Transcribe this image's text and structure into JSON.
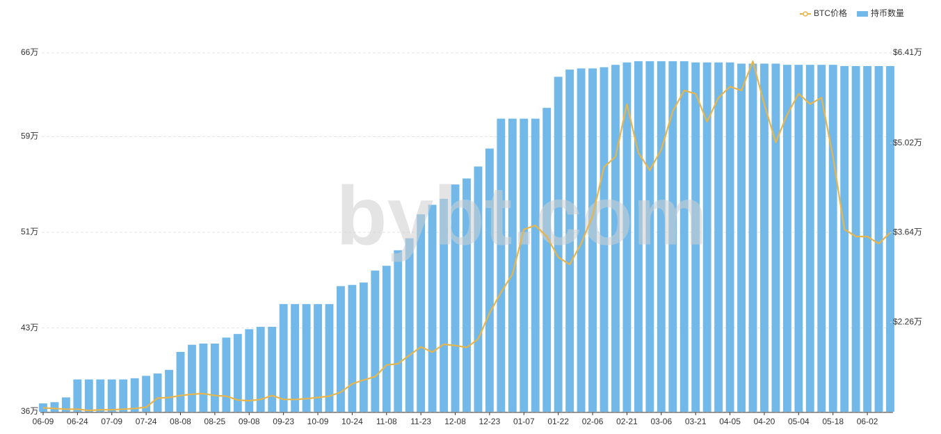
{
  "chart_data": {
    "type": "combo",
    "watermark": "bybt.com",
    "legend": "top-right",
    "grid": true,
    "categories": [
      "06-09",
      null,
      null,
      "06-24",
      null,
      null,
      "07-09",
      null,
      null,
      "07-24",
      null,
      null,
      "08-08",
      null,
      null,
      "08-25",
      null,
      null,
      "09-08",
      null,
      null,
      "09-23",
      null,
      null,
      "10-09",
      null,
      null,
      "10-24",
      null,
      null,
      "11-08",
      null,
      null,
      "11-23",
      null,
      null,
      "12-08",
      null,
      null,
      "12-23",
      null,
      null,
      "01-07",
      null,
      null,
      "01-22",
      null,
      null,
      "02-06",
      null,
      null,
      "02-21",
      null,
      null,
      "03-06",
      null,
      null,
      "03-21",
      null,
      null,
      "04-05",
      null,
      null,
      "04-20",
      null,
      null,
      "05-04",
      null,
      null,
      "05-18",
      null,
      null,
      "06-02",
      null,
      null
    ],
    "ylim": [
      36,
      66
    ],
    "yticks": [
      {
        "value": 36,
        "label": "36万"
      },
      {
        "value": 43,
        "label": "43万"
      },
      {
        "value": 51,
        "label": "51万"
      },
      {
        "value": 59,
        "label": "59万"
      },
      {
        "value": 66,
        "label": "66万"
      }
    ],
    "y2lim": [
      0.88,
      6.41
    ],
    "y2ticks": [
      {
        "value": 2.26,
        "label": "$2.26万"
      },
      {
        "value": 3.64,
        "label": "$3.64万"
      },
      {
        "value": 5.02,
        "label": "$5.02万"
      },
      {
        "value": 6.41,
        "label": "$6.41万"
      }
    ],
    "series": [
      {
        "name": "BTC价格",
        "type": "line",
        "axis": "y2",
        "color": "#e8b54a",
        "values": [
          0.94,
          0.93,
          0.92,
          0.92,
          0.9,
          0.91,
          0.91,
          0.92,
          0.93,
          0.95,
          1.09,
          1.1,
          1.13,
          1.15,
          1.16,
          1.13,
          1.12,
          1.06,
          1.05,
          1.07,
          1.13,
          1.07,
          1.07,
          1.08,
          1.1,
          1.12,
          1.18,
          1.31,
          1.37,
          1.42,
          1.6,
          1.62,
          1.75,
          1.88,
          1.8,
          1.92,
          1.9,
          1.87,
          2.0,
          2.4,
          2.72,
          3.0,
          3.69,
          3.75,
          3.58,
          3.26,
          3.15,
          3.47,
          3.9,
          4.65,
          4.81,
          5.62,
          4.87,
          4.6,
          4.92,
          5.51,
          5.83,
          5.78,
          5.35,
          5.72,
          5.89,
          5.83,
          6.28,
          5.62,
          5.03,
          5.46,
          5.78,
          5.62,
          5.72,
          4.81,
          3.69,
          3.58,
          3.58,
          3.47,
          3.64
        ]
      },
      {
        "name": "持币数量",
        "type": "bar",
        "color": "#72b9ea",
        "values": [
          36.7,
          36.8,
          37.2,
          38.7,
          38.7,
          38.7,
          38.7,
          38.7,
          38.8,
          39.0,
          39.2,
          39.5,
          41.0,
          41.6,
          41.7,
          41.7,
          42.2,
          42.5,
          42.9,
          43.1,
          43.1,
          45.0,
          45.0,
          45.0,
          45.0,
          45.0,
          46.5,
          46.6,
          46.8,
          47.8,
          48.2,
          49.5,
          50.5,
          52.5,
          53.3,
          53.8,
          55.0,
          55.5,
          56.5,
          58.0,
          60.5,
          60.5,
          60.5,
          60.5,
          61.4,
          64.0,
          64.6,
          64.7,
          64.7,
          64.8,
          65.0,
          65.2,
          65.3,
          65.3,
          65.3,
          65.3,
          65.3,
          65.2,
          65.2,
          65.2,
          65.2,
          65.1,
          65.1,
          65.1,
          65.1,
          65.0,
          65.0,
          65.0,
          65.0,
          65.0,
          64.9,
          64.9,
          64.9,
          64.9,
          64.9
        ]
      }
    ]
  }
}
